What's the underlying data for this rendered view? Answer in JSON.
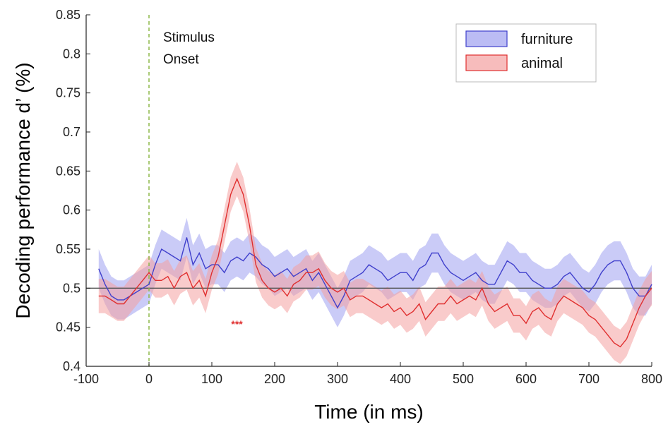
{
  "chart_data": {
    "type": "line",
    "xlabel": "Time (in ms)",
    "ylabel": "Decoding performance d’ (%)",
    "xlim": [
      -100,
      800
    ],
    "ylim": [
      0.4,
      0.85
    ],
    "xticks": [
      "-100",
      "0",
      "100",
      "200",
      "300",
      "400",
      "500",
      "600",
      "700",
      "800"
    ],
    "yticks": [
      "0.4",
      "0.45",
      "0.5",
      "0.55",
      "0.6",
      "0.65",
      "0.7",
      "0.75",
      "0.8",
      "0.85"
    ],
    "grid": false,
    "legend_position": "top-right",
    "reference_line": {
      "y": 0.5,
      "color": "#555555"
    },
    "onset_line": {
      "x": 0,
      "color": "#8db84a",
      "label_line1": "Stimulus",
      "label_line2": "Onset"
    },
    "significance": {
      "x": 140,
      "y": 0.455,
      "label": "***",
      "color": "#e03030"
    },
    "series": [
      {
        "name": "furniture",
        "line_color": "#4040cc",
        "fill_color": "#9ea0f0",
        "x": [
          -80,
          -70,
          -60,
          -50,
          -40,
          -30,
          -20,
          -10,
          0,
          10,
          20,
          30,
          40,
          50,
          60,
          70,
          80,
          90,
          100,
          110,
          120,
          130,
          140,
          150,
          160,
          170,
          180,
          190,
          200,
          210,
          220,
          230,
          240,
          250,
          260,
          270,
          280,
          290,
          300,
          310,
          320,
          330,
          340,
          350,
          360,
          370,
          380,
          390,
          400,
          410,
          420,
          430,
          440,
          450,
          460,
          470,
          480,
          490,
          500,
          510,
          520,
          530,
          540,
          550,
          560,
          570,
          580,
          590,
          600,
          610,
          620,
          630,
          640,
          650,
          660,
          670,
          680,
          690,
          700,
          710,
          720,
          730,
          740,
          750,
          760,
          770,
          780,
          790,
          800
        ],
        "y": [
          0.525,
          0.505,
          0.49,
          0.485,
          0.485,
          0.49,
          0.495,
          0.5,
          0.505,
          0.53,
          0.55,
          0.545,
          0.54,
          0.535,
          0.565,
          0.53,
          0.545,
          0.525,
          0.53,
          0.53,
          0.52,
          0.535,
          0.54,
          0.535,
          0.545,
          0.54,
          0.53,
          0.525,
          0.515,
          0.52,
          0.525,
          0.515,
          0.52,
          0.525,
          0.51,
          0.52,
          0.505,
          0.49,
          0.475,
          0.49,
          0.51,
          0.515,
          0.52,
          0.53,
          0.525,
          0.52,
          0.51,
          0.515,
          0.52,
          0.52,
          0.51,
          0.525,
          0.53,
          0.545,
          0.545,
          0.53,
          0.52,
          0.515,
          0.51,
          0.515,
          0.52,
          0.51,
          0.505,
          0.505,
          0.52,
          0.535,
          0.53,
          0.52,
          0.52,
          0.51,
          0.505,
          0.5,
          0.5,
          0.505,
          0.515,
          0.52,
          0.51,
          0.5,
          0.495,
          0.505,
          0.52,
          0.53,
          0.535,
          0.535,
          0.52,
          0.5,
          0.49,
          0.49,
          0.505
        ],
        "band": 0.025
      },
      {
        "name": "animal",
        "line_color": "#e03030",
        "fill_color": "#f4a0a0",
        "x": [
          -80,
          -70,
          -60,
          -50,
          -40,
          -30,
          -20,
          -10,
          0,
          10,
          20,
          30,
          40,
          50,
          60,
          70,
          80,
          90,
          100,
          110,
          120,
          130,
          140,
          150,
          160,
          170,
          180,
          190,
          200,
          210,
          220,
          230,
          240,
          250,
          260,
          270,
          280,
          290,
          300,
          310,
          320,
          330,
          340,
          350,
          360,
          370,
          380,
          390,
          400,
          410,
          420,
          430,
          440,
          450,
          460,
          470,
          480,
          490,
          500,
          510,
          520,
          530,
          540,
          550,
          560,
          570,
          580,
          590,
          600,
          610,
          620,
          630,
          640,
          650,
          660,
          670,
          680,
          690,
          700,
          710,
          720,
          730,
          740,
          750,
          760,
          770,
          780,
          790,
          800
        ],
        "y": [
          0.49,
          0.49,
          0.485,
          0.48,
          0.48,
          0.49,
          0.5,
          0.51,
          0.52,
          0.51,
          0.51,
          0.515,
          0.5,
          0.515,
          0.52,
          0.5,
          0.51,
          0.49,
          0.52,
          0.54,
          0.58,
          0.62,
          0.64,
          0.62,
          0.58,
          0.53,
          0.51,
          0.5,
          0.495,
          0.5,
          0.49,
          0.505,
          0.51,
          0.52,
          0.52,
          0.525,
          0.51,
          0.5,
          0.495,
          0.5,
          0.485,
          0.49,
          0.49,
          0.485,
          0.48,
          0.475,
          0.48,
          0.47,
          0.475,
          0.465,
          0.47,
          0.48,
          0.46,
          0.47,
          0.48,
          0.48,
          0.49,
          0.48,
          0.485,
          0.49,
          0.485,
          0.5,
          0.48,
          0.47,
          0.475,
          0.48,
          0.465,
          0.465,
          0.455,
          0.47,
          0.475,
          0.465,
          0.46,
          0.48,
          0.49,
          0.485,
          0.48,
          0.475,
          0.465,
          0.46,
          0.45,
          0.44,
          0.43,
          0.425,
          0.435,
          0.455,
          0.475,
          0.49,
          0.5
        ],
        "band": 0.022
      }
    ]
  }
}
